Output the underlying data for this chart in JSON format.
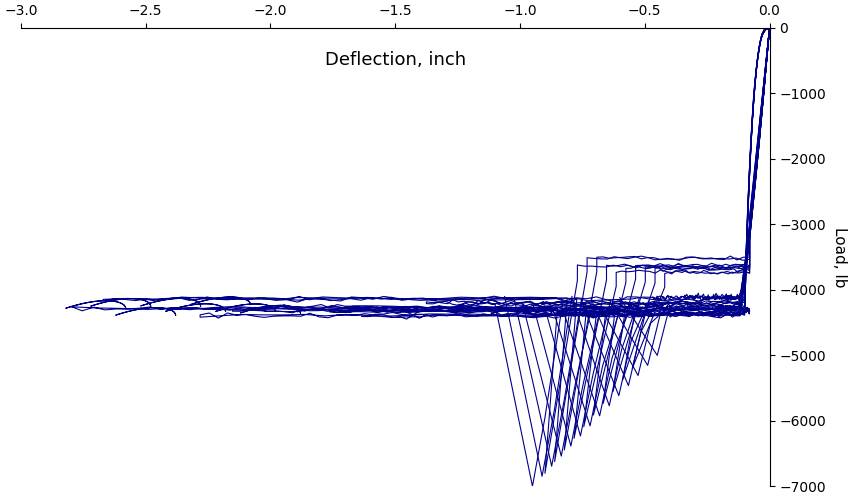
{
  "xlim": [
    -3,
    0
  ],
  "ylim": [
    -7000,
    0
  ],
  "xlabel_top": "Deflection, inch",
  "ylabel_right": "Load, lb",
  "xticks": [
    -3,
    -2.5,
    -2,
    -1.5,
    -1,
    -0.5,
    0
  ],
  "yticks": [
    0,
    -1000,
    -2000,
    -3000,
    -4000,
    -5000,
    -6000,
    -7000
  ],
  "line_color": "#00008B",
  "line_width": 0.8,
  "background_color": "#ffffff",
  "label_fontsize": 13,
  "axis_fontsize": 11,
  "tick_fontsize": 10
}
